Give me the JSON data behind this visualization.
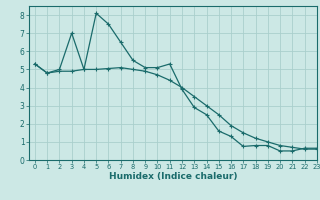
{
  "xlabel": "Humidex (Indice chaleur)",
  "bg_color": "#cce8e5",
  "grid_color": "#aacfcc",
  "line_color": "#1a6b6b",
  "line1_x": [
    0,
    1,
    2,
    3,
    4,
    5,
    6,
    7,
    8,
    9,
    10,
    11,
    12,
    13,
    14,
    15,
    16,
    17,
    18,
    19,
    20,
    21,
    22,
    23
  ],
  "line1_y": [
    5.3,
    4.8,
    5.0,
    7.0,
    5.0,
    8.1,
    7.5,
    6.5,
    5.5,
    5.1,
    5.1,
    5.3,
    3.9,
    2.9,
    2.5,
    1.6,
    1.3,
    0.75,
    0.8,
    0.8,
    0.5,
    0.5,
    0.65,
    0.65
  ],
  "line2_x": [
    0,
    1,
    2,
    3,
    4,
    5,
    6,
    7,
    8,
    9,
    10,
    11,
    12,
    13,
    14,
    15,
    16,
    17,
    18,
    19,
    20,
    21,
    22,
    23
  ],
  "line2_y": [
    5.3,
    4.8,
    4.9,
    4.9,
    5.0,
    5.0,
    5.05,
    5.1,
    5.0,
    4.9,
    4.7,
    4.4,
    4.0,
    3.5,
    3.0,
    2.5,
    1.9,
    1.5,
    1.2,
    1.0,
    0.8,
    0.7,
    0.6,
    0.6
  ],
  "xlim": [
    -0.5,
    23
  ],
  "ylim": [
    0,
    8.5
  ],
  "yticks": [
    0,
    1,
    2,
    3,
    4,
    5,
    6,
    7,
    8
  ],
  "xticks": [
    0,
    1,
    2,
    3,
    4,
    5,
    6,
    7,
    8,
    9,
    10,
    11,
    12,
    13,
    14,
    15,
    16,
    17,
    18,
    19,
    20,
    21,
    22,
    23
  ]
}
